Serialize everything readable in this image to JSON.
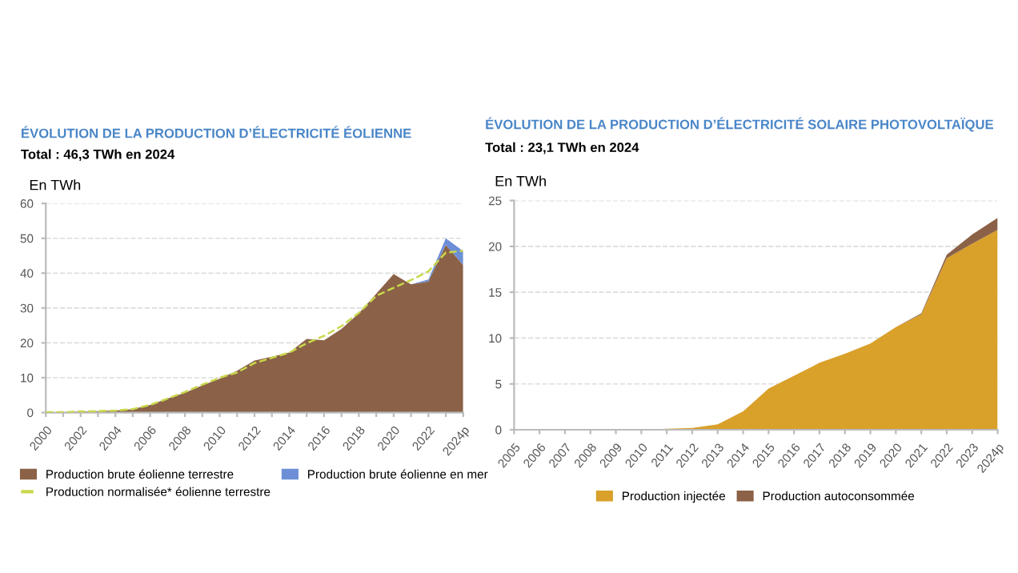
{
  "chart_data": [
    {
      "type": "area",
      "stacked": true,
      "title": "ÉVOLUTION DE LA PRODUCTION D’ÉLECTRICITÉ ÉOLIENNE",
      "subtitle": "Total : 46,3 TWh en 2024",
      "ylabel": "En TWh",
      "categories": [
        "2000",
        null,
        "2002",
        null,
        "2004",
        null,
        "2006",
        null,
        "2008",
        null,
        "2010",
        null,
        "2012",
        null,
        "2014",
        null,
        "2016",
        null,
        "2018",
        null,
        "2020",
        null,
        "2022",
        null,
        "2024p"
      ],
      "ylim": [
        0,
        60
      ],
      "yticks": [
        0,
        10,
        20,
        30,
        40,
        50,
        60
      ],
      "grid": "y",
      "legend": "bottom",
      "series": [
        {
          "name": "Production brute éolienne terrestre",
          "color": "#8b6247",
          "values": [
            0.1,
            0.1,
            0.3,
            0.4,
            0.6,
            1.0,
            2.2,
            4.0,
            5.7,
            7.8,
            9.7,
            12.0,
            14.9,
            16.0,
            17.2,
            21.1,
            20.7,
            24.0,
            28.5,
            34.1,
            39.7,
            36.8,
            37.6,
            48.1,
            42.3
          ]
        },
        {
          "name": "Production brute éolienne en mer",
          "color": "#6d8fd6",
          "values": [
            0,
            0,
            0,
            0,
            0,
            0,
            0,
            0,
            0,
            0,
            0,
            0,
            0,
            0,
            0,
            0,
            0,
            0,
            0,
            0,
            0,
            0,
            0.6,
            1.9,
            4.0
          ]
        },
        {
          "name": "Production normalisée* éolienne terrestre",
          "type": "line",
          "color": "#c8d84a",
          "line_style": "dashed",
          "values": [
            0.1,
            0.1,
            0.3,
            0.4,
            0.6,
            1.0,
            2.2,
            4.0,
            5.9,
            8.0,
            10.0,
            11.5,
            14.2,
            15.7,
            17.2,
            19.9,
            22.0,
            24.8,
            28.6,
            33.5,
            35.8,
            38.0,
            40.5,
            45.9,
            46.4
          ]
        }
      ]
    },
    {
      "type": "area",
      "stacked": true,
      "title": "ÉVOLUTION DE LA PRODUCTION D’ÉLECTRICITÉ SOLAIRE PHOTOVOLTAÏQUE",
      "subtitle": "Total : 23,1 TWh en 2024",
      "ylabel": "En TWh",
      "categories": [
        "2005",
        "2006",
        "2007",
        "2008",
        "2009",
        "2010",
        "2011",
        "2012",
        "2013",
        "2014",
        "2015",
        "2016",
        "2017",
        "2018",
        "2019",
        "2020",
        "2021",
        "2022",
        "2023",
        "2024p"
      ],
      "ylim": [
        0,
        25
      ],
      "yticks": [
        0,
        5,
        10,
        15,
        20,
        25
      ],
      "grid": "y",
      "legend": "bottom",
      "series": [
        {
          "name": "Production injectée",
          "color": "#d9a02a",
          "values": [
            0,
            0,
            0,
            0,
            0,
            0,
            0.1,
            0.2,
            0.6,
            2.0,
            4.5,
            5.9,
            7.3,
            8.3,
            9.4,
            11.2,
            12.6,
            18.7,
            20.3,
            21.8
          ]
        },
        {
          "name": "Production autoconsommée",
          "color": "#8b6247",
          "values": [
            0,
            0,
            0,
            0,
            0,
            0,
            0,
            0,
            0,
            0,
            0,
            0,
            0,
            0,
            0,
            0,
            0.1,
            0.4,
            1.0,
            1.3
          ]
        }
      ]
    }
  ]
}
